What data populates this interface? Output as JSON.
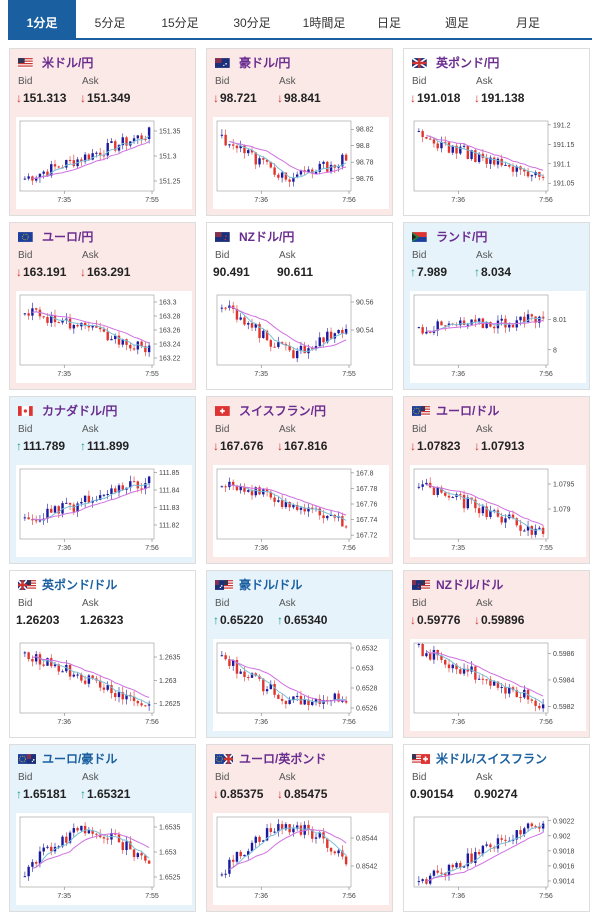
{
  "tabs": [
    {
      "label": "1分足",
      "active": true
    },
    {
      "label": "5分足",
      "active": false
    },
    {
      "label": "15分足",
      "active": false
    },
    {
      "label": "30分足",
      "active": false
    },
    {
      "label": "1時間足",
      "active": false
    },
    {
      "label": "日足",
      "active": false
    },
    {
      "label": "週足",
      "active": false
    },
    {
      "label": "月足",
      "active": false
    }
  ],
  "labels": {
    "bid": "Bid",
    "ask": "Ask"
  },
  "colors": {
    "up_candle": "#1a1aa0",
    "down_candle": "#e0342c",
    "ma_long": "#d070e0",
    "ma_short": "#7ac0d8",
    "accent": "#1a5fa0"
  },
  "cards": [
    {
      "pair": "米ドル/円",
      "flag": "us-flag",
      "bid": "151.313",
      "ask": "151.349",
      "dir": "down",
      "bg": "red",
      "pair_color": "purple",
      "chart_data": {
        "type": "candlestick",
        "y_ticks": [
          "151.35",
          "151.3",
          "151.25"
        ],
        "ylim": [
          151.23,
          151.37
        ],
        "x_ticks": [
          "7:35",
          "7:55"
        ],
        "start": 151.255,
        "end": 151.345,
        "trend": "up"
      }
    },
    {
      "pair": "豪ドル/円",
      "flag": "au-flag",
      "bid": "98.721",
      "ask": "98.841",
      "dir": "down",
      "bg": "red",
      "pair_color": "purple",
      "chart_data": {
        "type": "candlestick",
        "y_ticks": [
          "98.82",
          "98.8",
          "98.78",
          "98.76"
        ],
        "ylim": [
          98.745,
          98.83
        ],
        "x_ticks": [
          "7:36",
          "7:56"
        ],
        "start": 98.81,
        "end": 98.785,
        "trend": "v"
      }
    },
    {
      "pair": "英ポンド/円",
      "flag": "gb-flag",
      "bid": "191.018",
      "ask": "191.138",
      "dir": "down",
      "bg": "white",
      "pair_color": "purple",
      "chart_data": {
        "type": "candlestick",
        "y_ticks": [
          "191.2",
          "191.15",
          "191.1",
          "191.05"
        ],
        "ylim": [
          191.03,
          191.21
        ],
        "x_ticks": [
          "7:36",
          "7:56"
        ],
        "start": 191.17,
        "end": 191.06,
        "trend": "down"
      }
    },
    {
      "pair": "ユーロ/円",
      "flag": "eu-flag",
      "bid": "163.191",
      "ask": "163.291",
      "dir": "down",
      "bg": "red",
      "pair_color": "purple",
      "chart_data": {
        "type": "candlestick",
        "y_ticks": [
          "163.3",
          "163.28",
          "163.26",
          "163.24",
          "163.22"
        ],
        "ylim": [
          163.21,
          163.31
        ],
        "x_ticks": [
          "7:35",
          "7:55"
        ],
        "start": 163.29,
        "end": 163.23,
        "trend": "down"
      }
    },
    {
      "pair": "NZドル/円",
      "flag": "nz-flag",
      "bid": "90.491",
      "ask": "90.611",
      "dir": "none",
      "bg": "white",
      "pair_color": "purple",
      "chart_data": {
        "type": "candlestick",
        "y_ticks": [
          "90.56",
          "90.54"
        ],
        "ylim": [
          90.515,
          90.565
        ],
        "x_ticks": [
          "7:35",
          "7:55"
        ],
        "start": 90.557,
        "end": 90.543,
        "trend": "v"
      }
    },
    {
      "pair": "ランド/円",
      "flag": "za-flag",
      "bid": "7.989",
      "ask": "8.034",
      "dir": "up",
      "bg": "blue",
      "pair_color": "purple",
      "chart_data": {
        "type": "candlestick",
        "y_ticks": [
          "8.01",
          "8"
        ],
        "ylim": [
          7.995,
          8.018
        ],
        "x_ticks": [
          "7:36",
          "7:56"
        ],
        "start": 8.007,
        "end": 8.01,
        "trend": "flat"
      }
    },
    {
      "pair": "カナダドル/円",
      "flag": "ca-flag",
      "bid": "111.789",
      "ask": "111.899",
      "dir": "up",
      "bg": "blue",
      "pair_color": "purple",
      "chart_data": {
        "type": "candlestick",
        "y_ticks": [
          "111.85",
          "111.84",
          "111.83",
          "111.82"
        ],
        "ylim": [
          111.812,
          111.852
        ],
        "x_ticks": [
          "7:36",
          "7:56"
        ],
        "start": 111.822,
        "end": 111.845,
        "trend": "up"
      }
    },
    {
      "pair": "スイスフラン/円",
      "flag": "ch-flag",
      "bid": "167.676",
      "ask": "167.816",
      "dir": "down",
      "bg": "red",
      "pair_color": "purple",
      "chart_data": {
        "type": "candlestick",
        "y_ticks": [
          "167.8",
          "167.78",
          "167.76",
          "167.74",
          "167.72"
        ],
        "ylim": [
          167.715,
          167.805
        ],
        "x_ticks": [
          "7:36",
          "7:56"
        ],
        "start": 167.79,
        "end": 167.735,
        "trend": "down"
      }
    },
    {
      "pair": "ユーロ/ドル",
      "flag": "eu-us-flag",
      "bid": "1.07823",
      "ask": "1.07913",
      "dir": "down",
      "bg": "red",
      "pair_color": "purple",
      "chart_data": {
        "type": "candlestick",
        "y_ticks": [
          "1.0795",
          "1.079"
        ],
        "ylim": [
          1.0784,
          1.0798
        ],
        "x_ticks": [
          "7:35",
          "7:55"
        ],
        "start": 1.0795,
        "end": 1.0785,
        "trend": "down"
      }
    },
    {
      "pair": "英ポンド/ドル",
      "flag": "gb-us-flag",
      "bid": "1.26203",
      "ask": "1.26323",
      "dir": "none",
      "bg": "white",
      "pair_color": "blue",
      "chart_data": {
        "type": "candlestick",
        "y_ticks": [
          "1.2635",
          "1.263",
          "1.2625"
        ],
        "ylim": [
          1.2623,
          1.2638
        ],
        "x_ticks": [
          "7:36",
          "7:56"
        ],
        "start": 1.2636,
        "end": 1.2624,
        "trend": "down"
      }
    },
    {
      "pair": "豪ドル/ドル",
      "flag": "au-us-flag",
      "bid": "0.65220",
      "ask": "0.65340",
      "dir": "up",
      "bg": "blue",
      "pair_color": "blue",
      "chart_data": {
        "type": "candlestick",
        "y_ticks": [
          "0.6532",
          "0.653",
          "0.6528",
          "0.6526"
        ],
        "ylim": [
          0.65255,
          0.65325
        ],
        "x_ticks": [
          "7:36",
          "7:56"
        ],
        "start": 0.6531,
        "end": 0.6527,
        "trend": "v"
      }
    },
    {
      "pair": "NZドル/ドル",
      "flag": "nz-us-flag",
      "bid": "0.59776",
      "ask": "0.59896",
      "dir": "down",
      "bg": "red",
      "pair_color": "purple",
      "chart_data": {
        "type": "candlestick",
        "y_ticks": [
          "0.5986",
          "0.5984",
          "0.5982"
        ],
        "ylim": [
          0.59815,
          0.59868
        ],
        "x_ticks": [
          "7:36",
          "7:56"
        ],
        "start": 0.59863,
        "end": 0.59822,
        "trend": "down"
      }
    },
    {
      "pair": "ユーロ/豪ドル",
      "flag": "eu-au-flag",
      "bid": "1.65181",
      "ask": "1.65321",
      "dir": "up",
      "bg": "blue",
      "pair_color": "blue",
      "chart_data": {
        "type": "candlestick",
        "y_ticks": [
          "1.6535",
          "1.653",
          "1.6525"
        ],
        "ylim": [
          1.6523,
          1.6537
        ],
        "x_ticks": [
          "7:35",
          "7:55"
        ],
        "start": 1.6526,
        "end": 1.6527,
        "trend": "hump"
      }
    },
    {
      "pair": "ユーロ/英ポンド",
      "flag": "eu-gb-flag",
      "bid": "0.85375",
      "ask": "0.85475",
      "dir": "down",
      "bg": "red",
      "pair_color": "purple",
      "chart_data": {
        "type": "candlestick",
        "y_ticks": [
          "0.8544",
          "0.8542"
        ],
        "ylim": [
          0.85405,
          0.85455
        ],
        "x_ticks": [
          "7:36",
          "7:56"
        ],
        "start": 0.85415,
        "end": 0.85425,
        "trend": "hump"
      }
    },
    {
      "pair": "米ドル/スイスフラン",
      "flag": "us-ch-flag",
      "bid": "0.90154",
      "ask": "0.90274",
      "dir": "none",
      "bg": "white",
      "pair_color": "blue",
      "chart_data": {
        "type": "candlestick",
        "y_ticks": [
          "0.9022",
          "0.902",
          "0.9018",
          "0.9016",
          "0.9014"
        ],
        "ylim": [
          0.90132,
          0.90225
        ],
        "x_ticks": [
          "7:36",
          "7:56"
        ],
        "start": 0.90138,
        "end": 0.90218,
        "trend": "up"
      }
    }
  ]
}
